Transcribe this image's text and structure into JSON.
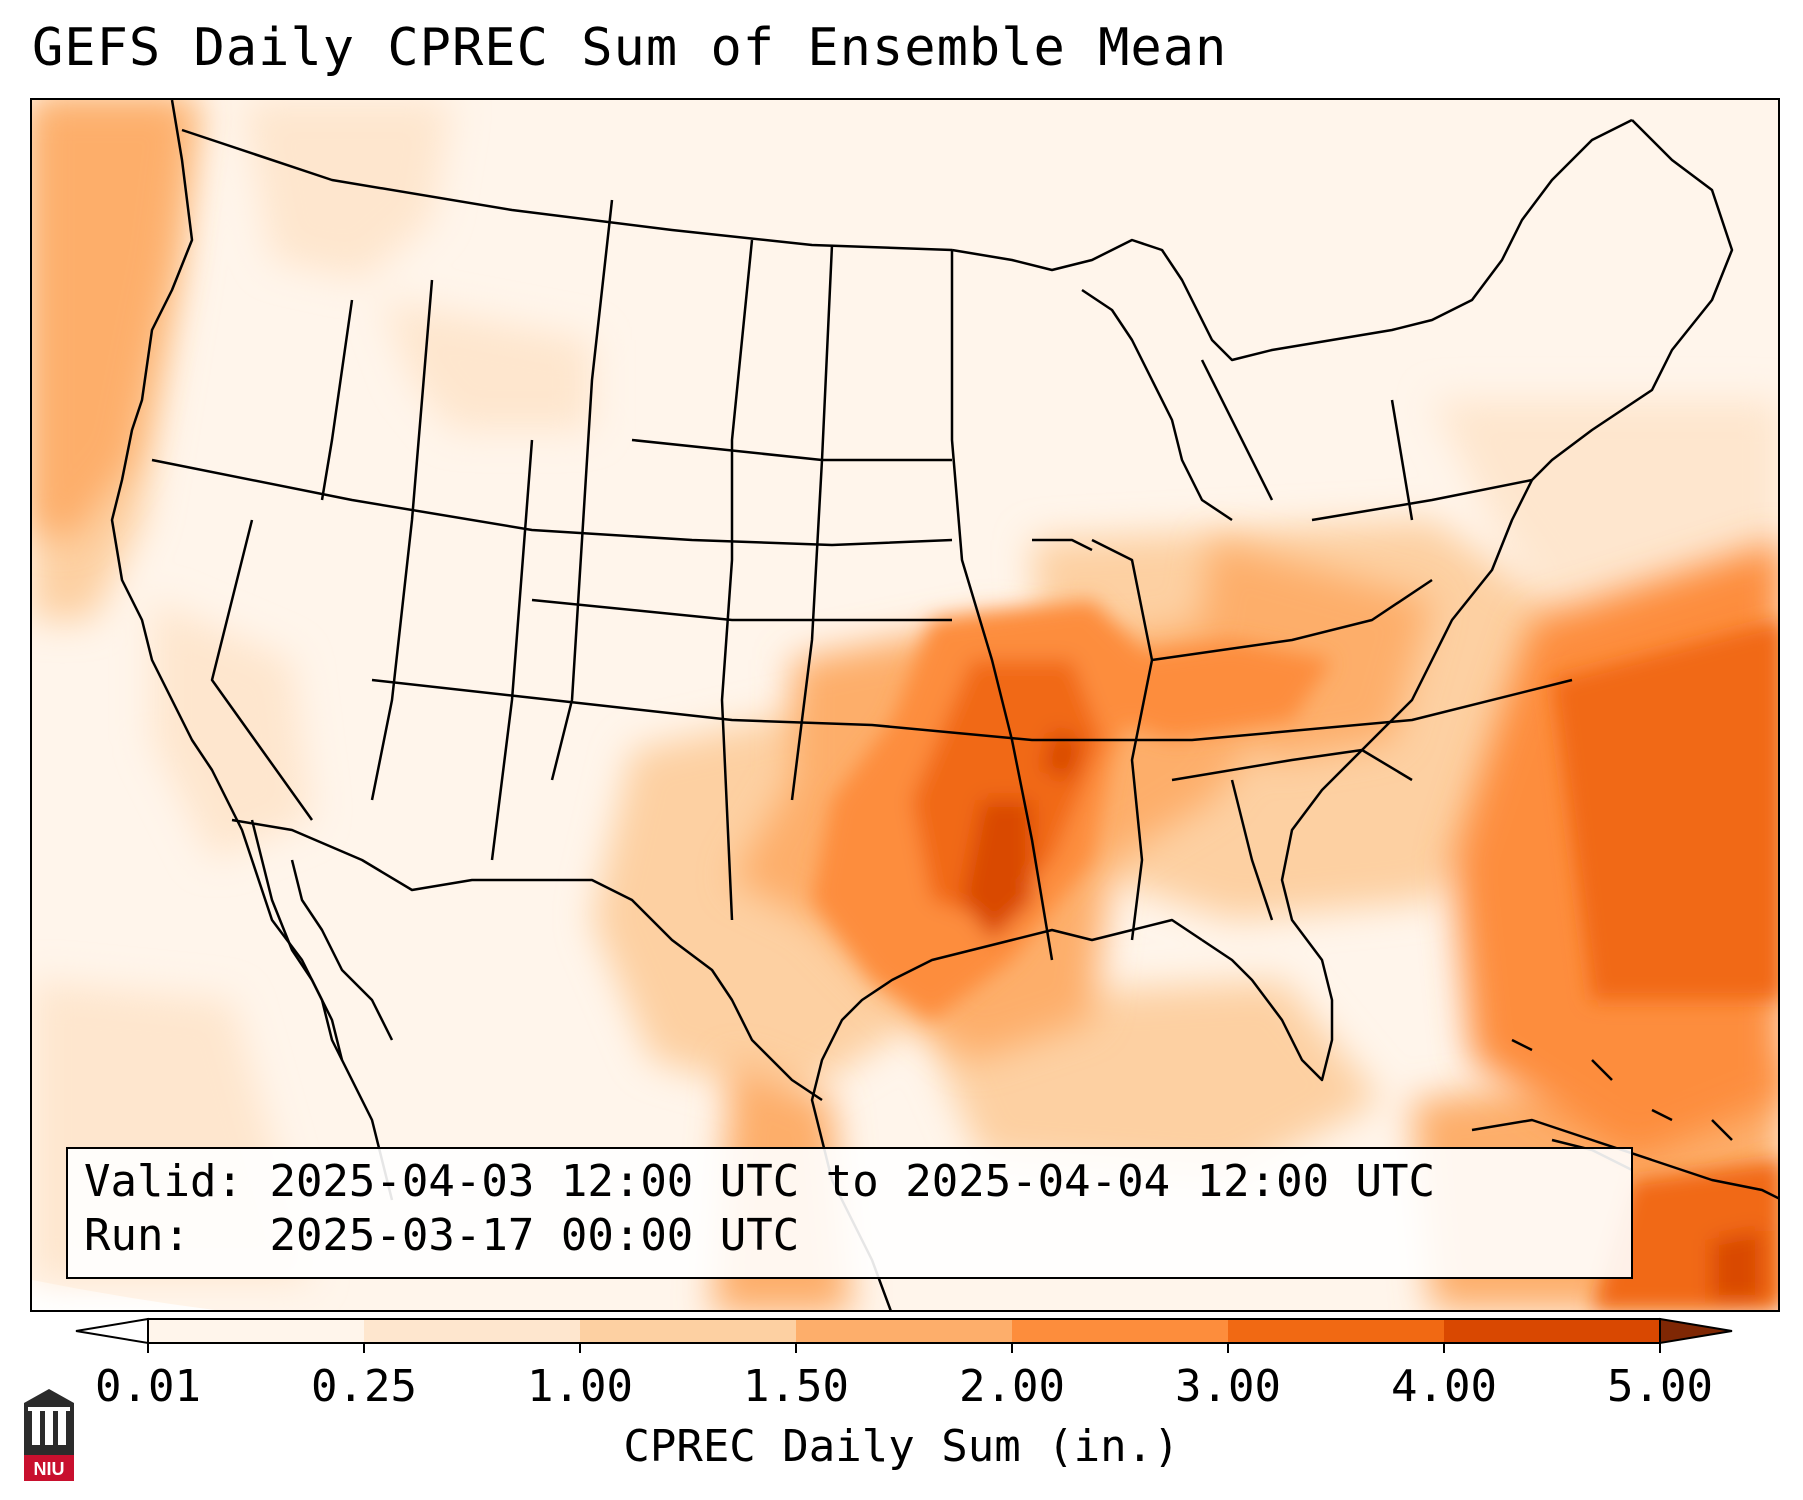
{
  "title": "GEFS Daily CPREC Sum of Ensemble Mean",
  "info": {
    "valid_label": "Valid:",
    "valid_value": "2025-04-03 12:00 UTC to 2025-04-04 12:00 UTC",
    "run_label": "Run:",
    "run_value": "2025-03-17 00:00 UTC"
  },
  "colorbar": {
    "label": "CPREC Daily Sum (in.)",
    "ticks": [
      "0.01",
      "0.25",
      "1.00",
      "1.50",
      "2.00",
      "3.00",
      "4.00",
      "5.00"
    ],
    "colors": [
      "#fff5eb",
      "#fee6ce",
      "#fdd0a2",
      "#fdae6b",
      "#fd8d3c",
      "#f16913",
      "#d94801",
      "#a63603"
    ],
    "under_color": "#ffffff",
    "over_color": "#7f2704"
  },
  "logo": {
    "text": "NIU",
    "name": "niu-logo-icon"
  }
}
